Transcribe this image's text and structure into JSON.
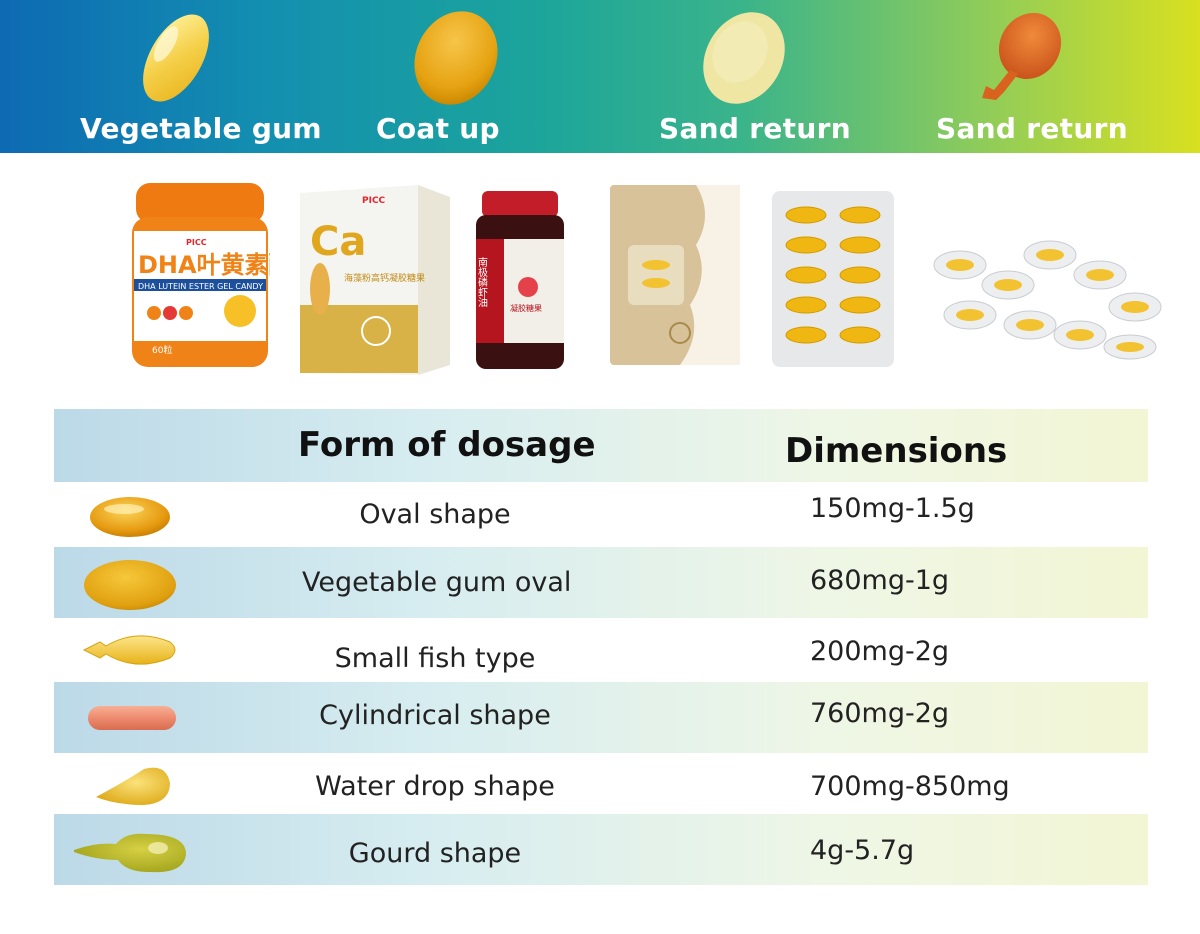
{
  "banner": {
    "capsules": [
      {
        "label": "Vegetable gum",
        "icon": "clear-softgel-icon"
      },
      {
        "label": "Coat up",
        "icon": "amber-oval-softgel-icon"
      },
      {
        "label": "Sand return",
        "icon": "matte-pale-softgel-icon"
      },
      {
        "label": "Sand return",
        "icon": "drumstick-softgel-icon"
      }
    ]
  },
  "products": [
    {
      "name": "dha-lutein-jar",
      "brand": "PICC",
      "title": "DHA叶黄素酯凝胶糖果",
      "subtitle": "DHA LUTEIN ESTER GEL CANDY",
      "badge": "60粒"
    },
    {
      "name": "calcium-box",
      "brand": "PICC",
      "title": "Ca",
      "subtitle": "海藻粉高钙凝胶糖果"
    },
    {
      "name": "krill-oil-bottle",
      "title": "南极磷虾油",
      "subtitle": "凝胶糖果"
    },
    {
      "name": "sachet-pack"
    },
    {
      "name": "blister-pack"
    },
    {
      "name": "loose-blisters"
    }
  ],
  "table": {
    "headers": {
      "form": "Form of dosage",
      "dimensions": "Dimensions"
    },
    "rows": [
      {
        "form": "Oval shape",
        "dimensions": "150mg-1.5g",
        "icon": "oval-softgel-icon"
      },
      {
        "form": "Vegetable gum oval",
        "dimensions": "680mg-1g",
        "icon": "vegetable-gum-oval-icon"
      },
      {
        "form": "Small fish type",
        "dimensions": "200mg-2g",
        "icon": "small-fish-softgel-icon"
      },
      {
        "form": "Cylindrical shape",
        "dimensions": "760mg-2g",
        "icon": "cylindrical-softgel-icon"
      },
      {
        "form": "Water drop shape",
        "dimensions": "700mg-850mg",
        "icon": "water-drop-softgel-icon"
      },
      {
        "form": "Gourd shape",
        "dimensions": "4g-5.7g",
        "icon": "gourd-softgel-icon"
      }
    ]
  },
  "colors": {
    "amber": "#e7a816",
    "gold": "#f2c230",
    "coral": "#ee8a6e",
    "olive": "#b9b82a",
    "banner_start": "#0d6ab3",
    "banner_end": "#d8e020"
  }
}
